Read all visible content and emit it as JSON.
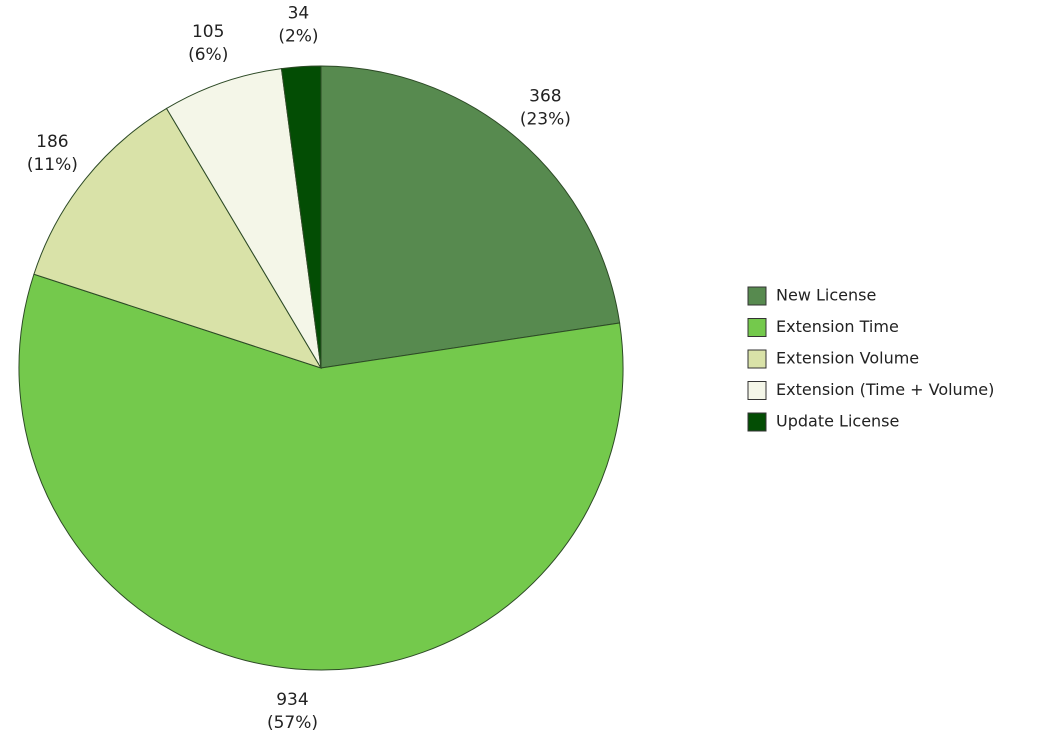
{
  "chart_data": {
    "type": "pie",
    "categories": [
      "New License",
      "Extension Time",
      "Extension Volume",
      "Extension (Time + Volume)",
      "Update License"
    ],
    "values": [
      368,
      934,
      186,
      105,
      34
    ],
    "percent_labels": [
      "(23%)",
      "(57%)",
      "(11%)",
      "(6%)",
      "(2%)"
    ],
    "colors": [
      "#578a4f",
      "#74c94c",
      "#d9e2a8",
      "#f4f6e8",
      "#034d04"
    ],
    "start_angle": "top",
    "direction": "clockwise",
    "legend": "right"
  }
}
